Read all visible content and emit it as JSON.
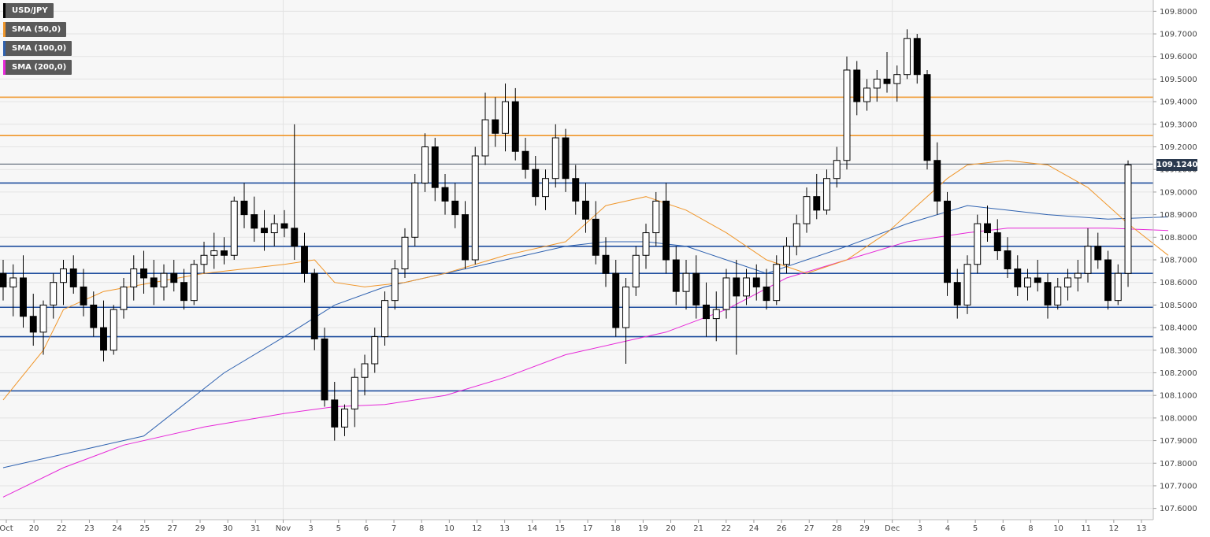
{
  "chart_data": {
    "type": "candlestick",
    "instrument": "USD/JPY",
    "legend": [
      {
        "label": "USD/JPY",
        "color": "#000000"
      },
      {
        "label": "SMA (50,0)",
        "color": "#f0962a"
      },
      {
        "label": "SMA (100,0)",
        "color": "#2f62b0"
      },
      {
        "label": "SMA (200,0)",
        "color": "#e628d8"
      }
    ],
    "ylim": [
      107.55,
      109.85
    ],
    "y_ticks": [
      "109.8000",
      "109.7000",
      "109.6000",
      "109.5000",
      "109.4000",
      "109.3000",
      "109.2000",
      "109.1000",
      "109.0000",
      "108.9000",
      "108.8000",
      "108.7000",
      "108.6000",
      "108.5000",
      "108.4000",
      "108.3000",
      "108.2000",
      "108.1000",
      "108.0000",
      "107.9000",
      "107.8000",
      "107.7000",
      "107.6000"
    ],
    "x_labels": [
      "Oct",
      "20",
      "22",
      "23",
      "24",
      "25",
      "27",
      "29",
      "30",
      "31",
      "Nov",
      "3",
      "5",
      "6",
      "7",
      "8",
      "10",
      "12",
      "13",
      "14",
      "15",
      "17",
      "18",
      "19",
      "20",
      "21",
      "22",
      "24",
      "26",
      "27",
      "28",
      "29",
      "Dec",
      "3",
      "4",
      "5",
      "6",
      "8",
      "10",
      "11",
      "12",
      "13"
    ],
    "last_price": "109.1240",
    "resistance_levels": [
      109.42,
      109.25
    ],
    "support_levels": [
      109.04,
      108.76,
      108.64,
      108.49,
      108.36,
      108.12
    ],
    "colors": {
      "resistance": "#f0962a",
      "support": "#1f4e9e",
      "last_price_line": "#2b3a4f"
    },
    "candles": [
      [
        108.64,
        108.7,
        108.52,
        108.58
      ],
      [
        108.58,
        108.68,
        108.45,
        108.62
      ],
      [
        108.62,
        108.72,
        108.4,
        108.45
      ],
      [
        108.45,
        108.55,
        108.32,
        108.38
      ],
      [
        108.38,
        108.52,
        108.28,
        108.5
      ],
      [
        108.5,
        108.64,
        108.44,
        108.6
      ],
      [
        108.6,
        108.7,
        108.5,
        108.66
      ],
      [
        108.66,
        108.72,
        108.55,
        108.58
      ],
      [
        108.58,
        108.66,
        108.45,
        108.5
      ],
      [
        108.5,
        108.56,
        108.36,
        108.4
      ],
      [
        108.4,
        108.52,
        108.25,
        108.3
      ],
      [
        108.3,
        108.5,
        108.28,
        108.48
      ],
      [
        108.48,
        108.62,
        108.44,
        108.58
      ],
      [
        108.58,
        108.72,
        108.52,
        108.66
      ],
      [
        108.66,
        108.74,
        108.55,
        108.62
      ],
      [
        108.62,
        108.7,
        108.5,
        108.58
      ],
      [
        108.58,
        108.68,
        108.52,
        108.64
      ],
      [
        108.64,
        108.7,
        108.56,
        108.6
      ],
      [
        108.6,
        108.66,
        108.48,
        108.52
      ],
      [
        108.52,
        108.7,
        108.5,
        108.68
      ],
      [
        108.68,
        108.78,
        108.64,
        108.72
      ],
      [
        108.72,
        108.82,
        108.66,
        108.74
      ],
      [
        108.74,
        108.8,
        108.68,
        108.72
      ],
      [
        108.72,
        108.98,
        108.7,
        108.96
      ],
      [
        108.96,
        109.04,
        108.84,
        108.9
      ],
      [
        108.9,
        108.98,
        108.78,
        108.84
      ],
      [
        108.84,
        108.92,
        108.74,
        108.82
      ],
      [
        108.82,
        108.9,
        108.76,
        108.86
      ],
      [
        108.86,
        108.92,
        108.8,
        108.84
      ],
      [
        108.84,
        109.3,
        108.7,
        108.76
      ],
      [
        108.76,
        108.82,
        108.6,
        108.64
      ],
      [
        108.64,
        108.66,
        108.3,
        108.35
      ],
      [
        108.35,
        108.4,
        108.05,
        108.08
      ],
      [
        108.08,
        108.16,
        107.9,
        107.96
      ],
      [
        107.96,
        108.06,
        107.92,
        108.04
      ],
      [
        108.04,
        108.22,
        107.96,
        108.18
      ],
      [
        108.18,
        108.28,
        108.1,
        108.24
      ],
      [
        108.24,
        108.4,
        108.2,
        108.36
      ],
      [
        108.36,
        108.56,
        108.32,
        108.52
      ],
      [
        108.52,
        108.7,
        108.48,
        108.66
      ],
      [
        108.66,
        108.84,
        108.62,
        108.8
      ],
      [
        108.8,
        109.08,
        108.76,
        109.04
      ],
      [
        109.04,
        109.26,
        109.0,
        109.2
      ],
      [
        109.2,
        109.24,
        108.96,
        109.02
      ],
      [
        109.02,
        109.08,
        108.9,
        108.96
      ],
      [
        108.96,
        109.04,
        108.84,
        108.9
      ],
      [
        108.9,
        108.96,
        108.66,
        108.7
      ],
      [
        108.7,
        109.2,
        108.68,
        109.16
      ],
      [
        109.16,
        109.44,
        109.12,
        109.32
      ],
      [
        109.32,
        109.42,
        109.2,
        109.26
      ],
      [
        109.26,
        109.48,
        109.18,
        109.4
      ],
      [
        109.4,
        109.46,
        109.14,
        109.18
      ],
      [
        109.18,
        109.24,
        109.06,
        109.1
      ],
      [
        109.1,
        109.16,
        108.94,
        108.98
      ],
      [
        108.98,
        109.1,
        108.92,
        109.06
      ],
      [
        109.06,
        109.3,
        109.02,
        109.24
      ],
      [
        109.24,
        109.28,
        109.0,
        109.06
      ],
      [
        109.06,
        109.12,
        108.9,
        108.96
      ],
      [
        108.96,
        109.04,
        108.82,
        108.88
      ],
      [
        108.88,
        108.96,
        108.68,
        108.72
      ],
      [
        108.72,
        108.8,
        108.58,
        108.64
      ],
      [
        108.64,
        108.7,
        108.36,
        108.4
      ],
      [
        108.4,
        108.62,
        108.24,
        108.58
      ],
      [
        108.58,
        108.76,
        108.54,
        108.72
      ],
      [
        108.72,
        108.86,
        108.66,
        108.82
      ],
      [
        108.82,
        109.0,
        108.76,
        108.96
      ],
      [
        108.96,
        109.04,
        108.64,
        108.7
      ],
      [
        108.7,
        108.76,
        108.5,
        108.56
      ],
      [
        108.56,
        108.7,
        108.48,
        108.64
      ],
      [
        108.64,
        108.72,
        108.44,
        108.5
      ],
      [
        108.5,
        108.6,
        108.36,
        108.44
      ],
      [
        108.44,
        108.56,
        108.34,
        108.48
      ],
      [
        108.48,
        108.66,
        108.44,
        108.62
      ],
      [
        108.62,
        108.7,
        108.28,
        108.54
      ],
      [
        108.54,
        108.66,
        108.5,
        108.62
      ],
      [
        108.62,
        108.68,
        108.52,
        108.58
      ],
      [
        108.58,
        108.66,
        108.48,
        108.52
      ],
      [
        108.52,
        108.72,
        108.5,
        108.68
      ],
      [
        108.68,
        108.8,
        108.64,
        108.76
      ],
      [
        108.76,
        108.9,
        108.72,
        108.86
      ],
      [
        108.86,
        109.02,
        108.82,
        108.98
      ],
      [
        108.98,
        109.08,
        108.88,
        108.92
      ],
      [
        108.92,
        109.1,
        108.9,
        109.06
      ],
      [
        109.06,
        109.2,
        109.02,
        109.14
      ],
      [
        109.14,
        109.6,
        109.1,
        109.54
      ],
      [
        109.54,
        109.58,
        109.34,
        109.4
      ],
      [
        109.4,
        109.5,
        109.36,
        109.46
      ],
      [
        109.46,
        109.54,
        109.4,
        109.5
      ],
      [
        109.5,
        109.62,
        109.44,
        109.48
      ],
      [
        109.48,
        109.56,
        109.4,
        109.52
      ],
      [
        109.52,
        109.72,
        109.5,
        109.68
      ],
      [
        109.68,
        109.7,
        109.48,
        109.52
      ],
      [
        109.52,
        109.54,
        109.1,
        109.14
      ],
      [
        109.14,
        109.22,
        108.9,
        108.96
      ],
      [
        108.96,
        109.0,
        108.54,
        108.6
      ],
      [
        108.6,
        108.66,
        108.44,
        108.5
      ],
      [
        108.5,
        108.72,
        108.46,
        108.68
      ],
      [
        108.68,
        108.9,
        108.64,
        108.86
      ],
      [
        108.86,
        108.94,
        108.78,
        108.82
      ],
      [
        108.82,
        108.88,
        108.7,
        108.74
      ],
      [
        108.74,
        108.8,
        108.62,
        108.66
      ],
      [
        108.66,
        108.72,
        108.54,
        108.58
      ],
      [
        108.58,
        108.66,
        108.52,
        108.62
      ],
      [
        108.62,
        108.7,
        108.56,
        108.6
      ],
      [
        108.6,
        108.64,
        108.44,
        108.5
      ],
      [
        108.5,
        108.62,
        108.48,
        108.58
      ],
      [
        108.58,
        108.66,
        108.52,
        108.62
      ],
      [
        108.62,
        108.7,
        108.56,
        108.64
      ],
      [
        108.64,
        108.84,
        108.6,
        108.76
      ],
      [
        108.76,
        108.82,
        108.66,
        108.7
      ],
      [
        108.7,
        108.74,
        108.48,
        108.52
      ],
      [
        108.52,
        108.68,
        108.5,
        108.64
      ],
      [
        108.64,
        109.14,
        108.58,
        109.12
      ]
    ],
    "sma50": [
      [
        0,
        108.08
      ],
      [
        4,
        108.3
      ],
      [
        6,
        108.48
      ],
      [
        10,
        108.56
      ],
      [
        20,
        108.64
      ],
      [
        28,
        108.68
      ],
      [
        31,
        108.7
      ],
      [
        33,
        108.6
      ],
      [
        36,
        108.58
      ],
      [
        40,
        108.6
      ],
      [
        44,
        108.64
      ],
      [
        50,
        108.72
      ],
      [
        56,
        108.78
      ],
      [
        60,
        108.94
      ],
      [
        64,
        108.98
      ],
      [
        68,
        108.92
      ],
      [
        72,
        108.82
      ],
      [
        76,
        108.7
      ],
      [
        80,
        108.64
      ],
      [
        84,
        108.7
      ],
      [
        88,
        108.82
      ],
      [
        94,
        109.06
      ],
      [
        96,
        109.12
      ],
      [
        100,
        109.14
      ],
      [
        104,
        109.12
      ],
      [
        108,
        109.02
      ],
      [
        112,
        108.86
      ],
      [
        116,
        108.72
      ]
    ],
    "sma100": [
      [
        0,
        107.78
      ],
      [
        8,
        107.86
      ],
      [
        14,
        107.92
      ],
      [
        18,
        108.06
      ],
      [
        22,
        108.2
      ],
      [
        28,
        108.36
      ],
      [
        33,
        108.5
      ],
      [
        38,
        108.58
      ],
      [
        44,
        108.64
      ],
      [
        50,
        108.7
      ],
      [
        56,
        108.76
      ],
      [
        60,
        108.78
      ],
      [
        64,
        108.78
      ],
      [
        68,
        108.76
      ],
      [
        72,
        108.7
      ],
      [
        76,
        108.64
      ],
      [
        80,
        108.7
      ],
      [
        84,
        108.76
      ],
      [
        90,
        108.86
      ],
      [
        96,
        108.94
      ],
      [
        100,
        108.92
      ],
      [
        104,
        108.9
      ],
      [
        110,
        108.88
      ],
      [
        116,
        108.89
      ]
    ],
    "sma200": [
      [
        0,
        107.65
      ],
      [
        6,
        107.78
      ],
      [
        12,
        107.88
      ],
      [
        20,
        107.96
      ],
      [
        28,
        108.02
      ],
      [
        33,
        108.05
      ],
      [
        38,
        108.06
      ],
      [
        44,
        108.1
      ],
      [
        50,
        108.18
      ],
      [
        56,
        108.28
      ],
      [
        62,
        108.34
      ],
      [
        66,
        108.38
      ],
      [
        72,
        108.48
      ],
      [
        78,
        108.62
      ],
      [
        84,
        108.7
      ],
      [
        90,
        108.78
      ],
      [
        96,
        108.82
      ],
      [
        100,
        108.84
      ],
      [
        110,
        108.84
      ],
      [
        116,
        108.83
      ]
    ]
  }
}
